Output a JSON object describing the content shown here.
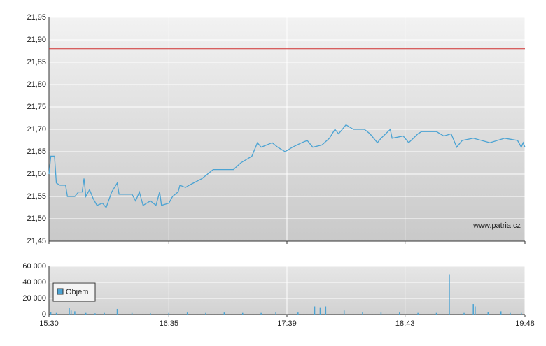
{
  "chart_data": [
    {
      "type": "line",
      "color": "#4ba3d3",
      "reference": 21.88,
      "reference_color": "#d03030",
      "watermark": "www.patria.cz",
      "xlim": [
        930,
        1188
      ],
      "xticks": [
        930,
        995,
        1059,
        1123,
        1188
      ],
      "ylim": [
        21.45,
        21.95
      ],
      "yticks": [
        {
          "value": 21.45,
          "label": "21,45"
        },
        {
          "value": 21.5,
          "label": "21,50"
        },
        {
          "value": 21.55,
          "label": "21,55"
        },
        {
          "value": 21.6,
          "label": "21,60"
        },
        {
          "value": 21.65,
          "label": "21,65"
        },
        {
          "value": 21.7,
          "label": "21,70"
        },
        {
          "value": 21.75,
          "label": "21,75"
        },
        {
          "value": 21.8,
          "label": "21,80"
        },
        {
          "value": 21.85,
          "label": "21,85"
        },
        {
          "value": 21.9,
          "label": "21,90"
        },
        {
          "value": 21.95,
          "label": "21,95"
        }
      ],
      "grid": true,
      "x": [
        930,
        931,
        933,
        934,
        936,
        939,
        940,
        944,
        946,
        948,
        949,
        950,
        952,
        954,
        956,
        959,
        961,
        964,
        967,
        968,
        975,
        977,
        979,
        981,
        985,
        988,
        990,
        991,
        995,
        997,
        1000,
        1001,
        1004,
        1006,
        1013,
        1019,
        1030,
        1034,
        1040,
        1043,
        1045,
        1051,
        1054,
        1058,
        1062,
        1067,
        1070,
        1073,
        1078,
        1082,
        1085,
        1087,
        1091,
        1095,
        1101,
        1104,
        1108,
        1110,
        1115,
        1116,
        1122,
        1125,
        1130,
        1132,
        1140,
        1144,
        1148,
        1151,
        1154,
        1160,
        1169,
        1177,
        1184,
        1186,
        1187,
        1188
      ],
      "values": [
        21.6,
        21.64,
        21.64,
        21.58,
        21.575,
        21.575,
        21.55,
        21.55,
        21.56,
        21.56,
        21.59,
        21.55,
        21.565,
        21.545,
        21.53,
        21.535,
        21.525,
        21.56,
        21.58,
        21.555,
        21.555,
        21.54,
        21.56,
        21.53,
        21.54,
        21.53,
        21.56,
        21.53,
        21.535,
        21.55,
        21.56,
        21.575,
        21.57,
        21.575,
        21.59,
        21.61,
        21.61,
        21.625,
        21.64,
        21.67,
        21.66,
        21.67,
        21.66,
        21.65,
        21.66,
        21.67,
        21.675,
        21.66,
        21.665,
        21.68,
        21.7,
        21.69,
        21.71,
        21.7,
        21.7,
        21.69,
        21.67,
        21.68,
        21.7,
        21.68,
        21.685,
        21.67,
        21.69,
        21.695,
        21.695,
        21.685,
        21.69,
        21.66,
        21.675,
        21.68,
        21.67,
        21.68,
        21.675,
        21.66,
        21.67,
        21.66
      ]
    },
    {
      "type": "bar",
      "legend": "upper left",
      "xlim": [
        930,
        1188
      ],
      "xticks": [
        {
          "value": 930,
          "label": "15:30"
        },
        {
          "value": 995,
          "label": "16:35"
        },
        {
          "value": 1059,
          "label": "17:39"
        },
        {
          "value": 1123,
          "label": "18:43"
        },
        {
          "value": 1188,
          "label": "19:48"
        }
      ],
      "ylim": [
        0,
        60000
      ],
      "yticks": [
        0,
        {
          "value": 20000,
          "label": "20 000"
        },
        {
          "value": 40000,
          "label": "40 000"
        },
        {
          "value": 60000,
          "label": "60 000"
        }
      ],
      "grid": true,
      "series": [
        {
          "name": "Objem",
          "color": "#4ba3d3",
          "x": [
            931,
            934,
            941,
            942,
            944,
            950,
            955,
            960,
            967,
            975,
            985,
            995,
            1005,
            1015,
            1025,
            1035,
            1045,
            1053,
            1065,
            1074,
            1077,
            1080,
            1090,
            1100,
            1110,
            1120,
            1130,
            1140,
            1147,
            1155,
            1160,
            1161,
            1168,
            1175,
            1180,
            1186
          ],
          "values": [
            3000,
            2000,
            8000,
            5000,
            4000,
            2000,
            1500,
            2000,
            7000,
            2000,
            1500,
            2000,
            2500,
            2000,
            2500,
            2000,
            2000,
            3000,
            2500,
            10000,
            9000,
            10000,
            5000,
            3000,
            2500,
            2500,
            2000,
            2000,
            50000,
            2000,
            13000,
            10000,
            3000,
            4000,
            2000,
            2000
          ]
        }
      ]
    }
  ]
}
